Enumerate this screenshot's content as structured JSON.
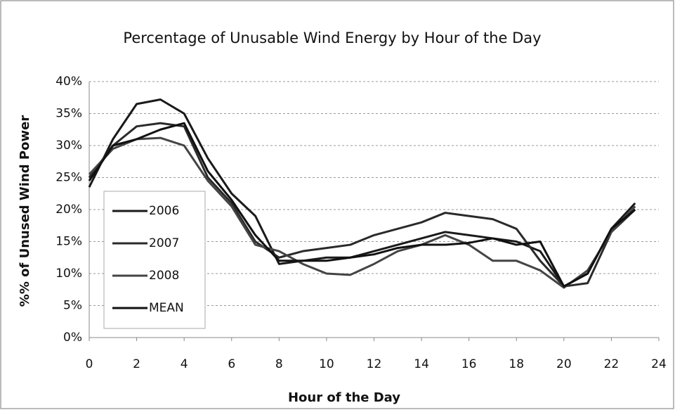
{
  "chart_data": {
    "type": "line",
    "title": "Percentage of Unusable Wind Energy by Hour of the Day",
    "x_label": "Hour of the Day",
    "y_label": "%% of Unused Wind Power",
    "x": [
      0,
      1,
      2,
      3,
      4,
      5,
      6,
      7,
      8,
      9,
      10,
      11,
      12,
      13,
      14,
      15,
      16,
      17,
      18,
      19,
      20,
      21,
      22,
      23
    ],
    "series": [
      {
        "name": "2006",
        "color": "#1a1a1a",
        "values": [
          23.5,
          31,
          36.5,
          37.2,
          35,
          28,
          22.5,
          19,
          11.5,
          12,
          12.5,
          12.5,
          13.5,
          14.5,
          15.5,
          16.5,
          16,
          15.5,
          15,
          13.5,
          8,
          10,
          17,
          21
        ]
      },
      {
        "name": "2007",
        "color": "#2a2a2a",
        "values": [
          25,
          30,
          33,
          33.5,
          33,
          25,
          21,
          15,
          12.5,
          13.5,
          14,
          14.5,
          16,
          17,
          18,
          19.5,
          19,
          18.5,
          17,
          12,
          8,
          8.5,
          16.5,
          20
        ]
      },
      {
        "name": "2008",
        "color": "#444444",
        "values": [
          25.5,
          29.5,
          31,
          31.2,
          30,
          24.5,
          20.5,
          14.5,
          13.5,
          11.5,
          10,
          9.8,
          11.5,
          13.5,
          14.5,
          16,
          14.5,
          12,
          12,
          10.5,
          7.8,
          10.5,
          16.5,
          20.5
        ]
      },
      {
        "name": "MEAN",
        "color": "#111111",
        "values": [
          24.5,
          30,
          31,
          32.5,
          33.5,
          26,
          21.5,
          16,
          12,
          12,
          12,
          12.5,
          13,
          14,
          14.5,
          14.5,
          14.8,
          15.5,
          14.5,
          15,
          8,
          10,
          17,
          20
        ]
      }
    ],
    "xlim": [
      0,
      24
    ],
    "xticks": [
      0,
      2,
      4,
      6,
      8,
      10,
      12,
      14,
      16,
      18,
      20,
      22,
      24
    ],
    "ylim": [
      0,
      40
    ],
    "yticks": [
      {
        "value": 0,
        "label": "0%"
      },
      {
        "value": 5,
        "label": "5%"
      },
      {
        "value": 10,
        "label": "10%"
      },
      {
        "value": 15,
        "label": "15%"
      },
      {
        "value": 20,
        "label": "20%"
      },
      {
        "value": 25,
        "label": "25%"
      },
      {
        "value": 30,
        "label": "30%"
      },
      {
        "value": 35,
        "label": "35%"
      },
      {
        "value": 40,
        "label": "40%"
      }
    ],
    "grid": true,
    "legend_position": "left"
  }
}
